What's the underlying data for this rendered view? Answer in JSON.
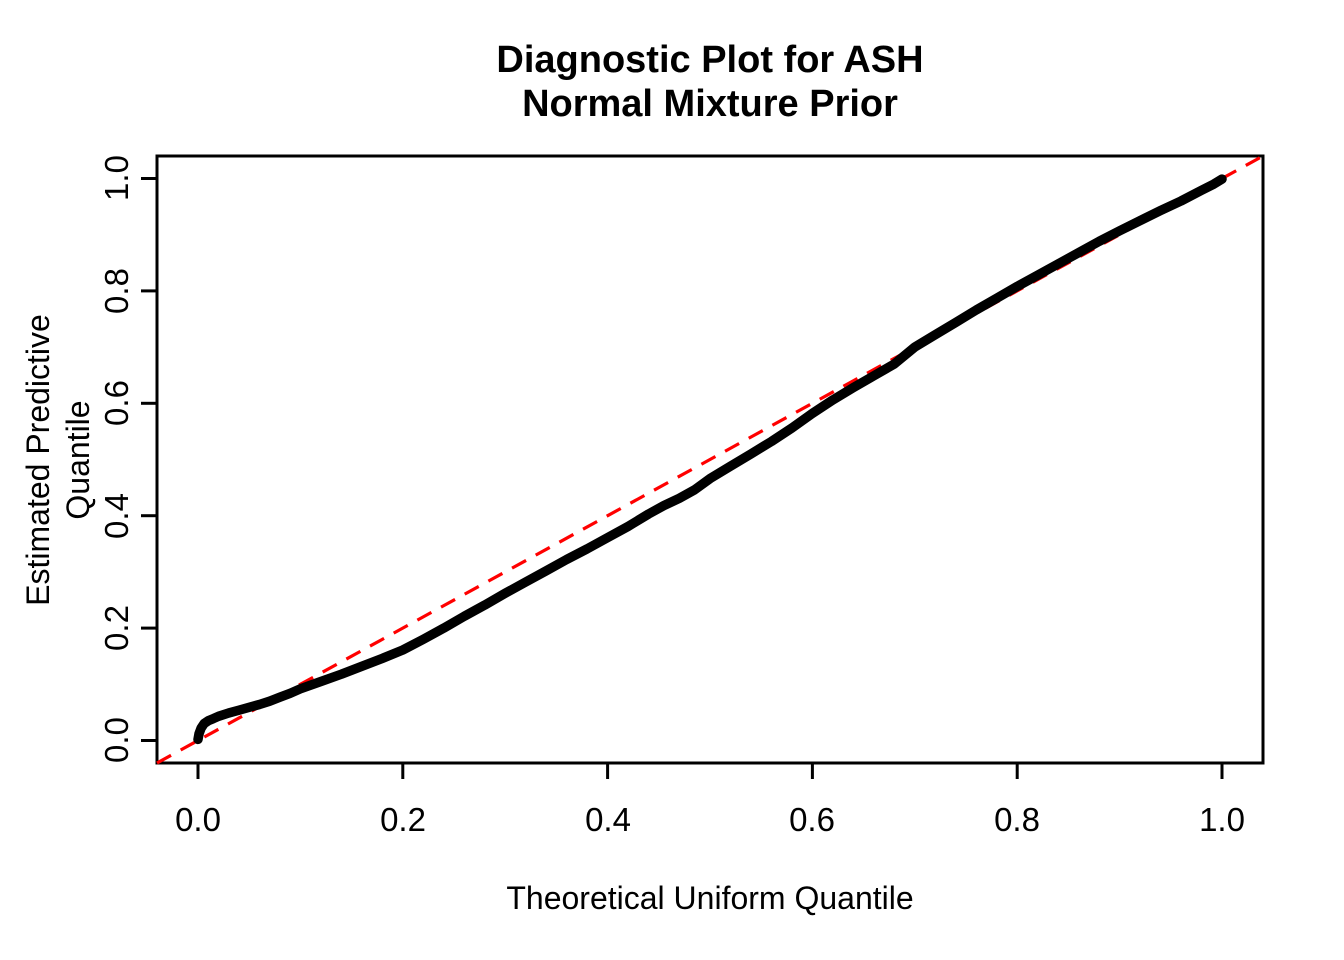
{
  "page": {
    "background": "#FFFFFF"
  },
  "title": {
    "line1": "Diagnostic Plot for ASH",
    "line2": "Normal Mixture Prior"
  },
  "axes": {
    "x_label": "Theoretical Uniform Quantile",
    "y_label": "Estimated Predictive Quantile",
    "x_ticks": [
      "0.0",
      "0.2",
      "0.4",
      "0.6",
      "0.8",
      "1.0"
    ],
    "y_ticks": [
      "0.0",
      "0.2",
      "0.4",
      "0.6",
      "0.8",
      "1.0"
    ]
  },
  "colors": {
    "curve": "#000000",
    "reference_line": "#FF0000",
    "axis": "#000000",
    "background": "#FFFFFF"
  },
  "chart_data": {
    "type": "line",
    "title": "Diagnostic Plot for ASH — Normal Mixture Prior",
    "xlabel": "Theoretical Uniform Quantile",
    "ylabel": "Estimated Predictive Quantile",
    "xlim": [
      -0.04,
      1.04
    ],
    "ylim": [
      -0.04,
      1.04
    ],
    "x_ticks": [
      0,
      0.2,
      0.4,
      0.6,
      0.8,
      1.0
    ],
    "y_ticks": [
      0,
      0.2,
      0.4,
      0.6,
      0.8,
      1.0
    ],
    "grid": false,
    "legend": false,
    "series": [
      {
        "name": "estimated-predictive-quantile-curve",
        "style": "thick-solid-points",
        "color": "#000000",
        "points": [
          [
            0.0,
            0.002
          ],
          [
            0.001,
            0.012
          ],
          [
            0.003,
            0.022
          ],
          [
            0.006,
            0.03
          ],
          [
            0.01,
            0.035
          ],
          [
            0.015,
            0.039
          ],
          [
            0.02,
            0.043
          ],
          [
            0.03,
            0.049
          ],
          [
            0.04,
            0.054
          ],
          [
            0.05,
            0.059
          ],
          [
            0.06,
            0.064
          ],
          [
            0.07,
            0.07
          ],
          [
            0.08,
            0.077
          ],
          [
            0.09,
            0.084
          ],
          [
            0.1,
            0.092
          ],
          [
            0.12,
            0.105
          ],
          [
            0.14,
            0.118
          ],
          [
            0.16,
            0.132
          ],
          [
            0.18,
            0.146
          ],
          [
            0.2,
            0.161
          ],
          [
            0.22,
            0.18
          ],
          [
            0.24,
            0.2
          ],
          [
            0.26,
            0.221
          ],
          [
            0.28,
            0.241
          ],
          [
            0.3,
            0.262
          ],
          [
            0.32,
            0.282
          ],
          [
            0.34,
            0.302
          ],
          [
            0.36,
            0.322
          ],
          [
            0.38,
            0.341
          ],
          [
            0.4,
            0.361
          ],
          [
            0.42,
            0.381
          ],
          [
            0.44,
            0.403
          ],
          [
            0.455,
            0.418
          ],
          [
            0.47,
            0.431
          ],
          [
            0.485,
            0.446
          ],
          [
            0.5,
            0.466
          ],
          [
            0.52,
            0.488
          ],
          [
            0.54,
            0.51
          ],
          [
            0.56,
            0.532
          ],
          [
            0.58,
            0.556
          ],
          [
            0.6,
            0.582
          ],
          [
            0.62,
            0.606
          ],
          [
            0.64,
            0.628
          ],
          [
            0.66,
            0.649
          ],
          [
            0.68,
            0.67
          ],
          [
            0.7,
            0.7
          ],
          [
            0.72,
            0.722
          ],
          [
            0.74,
            0.744
          ],
          [
            0.76,
            0.766
          ],
          [
            0.78,
            0.787
          ],
          [
            0.8,
            0.808
          ],
          [
            0.82,
            0.828
          ],
          [
            0.84,
            0.848
          ],
          [
            0.86,
            0.868
          ],
          [
            0.88,
            0.888
          ],
          [
            0.9,
            0.907
          ],
          [
            0.92,
            0.925
          ],
          [
            0.94,
            0.943
          ],
          [
            0.96,
            0.96
          ],
          [
            0.98,
            0.979
          ],
          [
            0.992,
            0.99
          ],
          [
            1.0,
            0.999
          ]
        ]
      },
      {
        "name": "identity-reference-line",
        "style": "dashed",
        "color": "#FF0000",
        "points": [
          [
            -0.04,
            -0.04
          ],
          [
            1.04,
            1.04
          ]
        ]
      }
    ]
  }
}
